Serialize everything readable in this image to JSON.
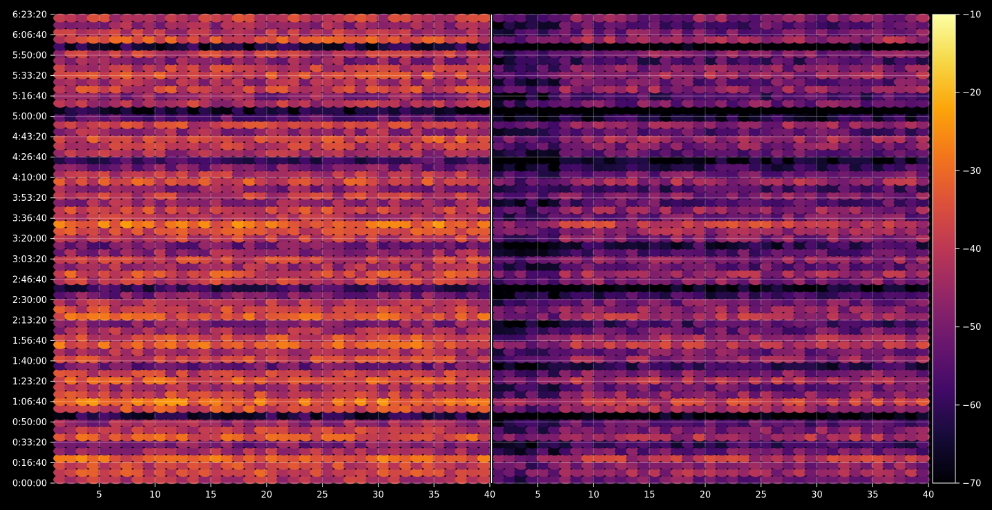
{
  "chart_data": {
    "type": "heatmap",
    "colormap": "inferno",
    "background": "#000000",
    "grid": true,
    "panels": [
      {
        "name": "left",
        "xlim": [
          1,
          40
        ],
        "x_ticks": [
          5,
          10,
          15,
          20,
          25,
          30,
          35,
          40
        ]
      },
      {
        "name": "right",
        "xlim": [
          1,
          40
        ],
        "x_ticks": [
          5,
          10,
          15,
          20,
          25,
          30,
          35,
          40
        ]
      }
    ],
    "y_ticks": [
      "0:00:00",
      "0:16:40",
      "0:33:20",
      "0:50:00",
      "1:06:40",
      "1:23:20",
      "1:40:00",
      "1:56:40",
      "2:13:20",
      "2:30:00",
      "2:46:40",
      "3:03:20",
      "3:20:00",
      "3:36:40",
      "3:53:20",
      "4:10:00",
      "4:26:40",
      "4:43:20",
      "5:00:00",
      "5:16:40",
      "5:33:20",
      "5:50:00",
      "6:06:40",
      "6:23:20"
    ],
    "ylim_seconds": [
      0,
      23000
    ],
    "rows": 66,
    "colorbar": {
      "min": -70,
      "max": -10,
      "ticks": [
        -70,
        -60,
        -50,
        -40,
        -30,
        -20,
        -10
      ]
    },
    "row_levels": [
      -42,
      -36,
      -38,
      -32,
      -44,
      -50,
      -34,
      -40,
      -46,
      -62,
      -36,
      -30,
      -38,
      -44,
      -34,
      -40,
      -52,
      -38,
      -42,
      -32,
      -36,
      -44,
      -48,
      -34,
      -38,
      -42,
      -50,
      -60,
      -40,
      -36,
      -44,
      -38,
      -46,
      -52,
      -40,
      -36,
      -30,
      -42,
      -38,
      -46,
      -40,
      -48,
      -36,
      -42,
      -50,
      -58,
      -44,
      -40,
      -36,
      -46,
      -38,
      -54,
      -66,
      -42,
      -48,
      -38,
      -44,
      -36,
      -40,
      -48,
      -40,
      -64,
      -36,
      -42,
      -46,
      -40
    ],
    "right_panel_offset": -9
  }
}
